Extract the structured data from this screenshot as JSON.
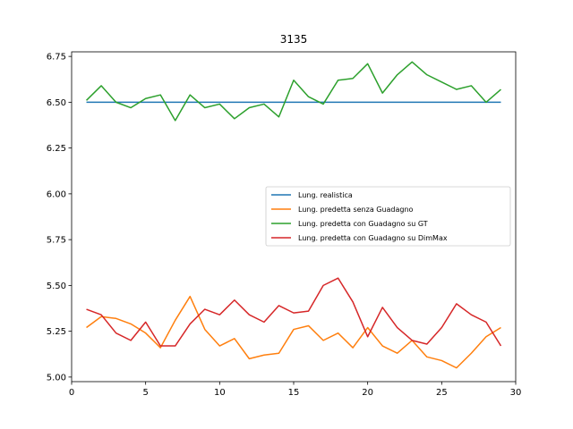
{
  "chart_data": {
    "type": "line",
    "title": "3135",
    "xlabel": "",
    "ylabel": "",
    "xlim": [
      0,
      30
    ],
    "ylim": [
      4.975,
      6.775
    ],
    "x_ticks": [
      0,
      5,
      10,
      15,
      20,
      25,
      30
    ],
    "y_ticks": [
      5.0,
      5.25,
      5.5,
      5.75,
      6.0,
      6.25,
      6.5,
      6.75
    ],
    "grid": false,
    "legend_position": "center-right",
    "x": [
      1,
      2,
      3,
      4,
      5,
      6,
      7,
      8,
      9,
      10,
      11,
      12,
      13,
      14,
      15,
      16,
      17,
      18,
      19,
      20,
      21,
      22,
      23,
      24,
      25,
      26,
      27,
      28,
      29
    ],
    "series": [
      {
        "name": "Lung. realistica",
        "color": "#1f77b4",
        "values": [
          6.5,
          6.5,
          6.5,
          6.5,
          6.5,
          6.5,
          6.5,
          6.5,
          6.5,
          6.5,
          6.5,
          6.5,
          6.5,
          6.5,
          6.5,
          6.5,
          6.5,
          6.5,
          6.5,
          6.5,
          6.5,
          6.5,
          6.5,
          6.5,
          6.5,
          6.5,
          6.5,
          6.5,
          6.5
        ]
      },
      {
        "name": "Lung. predetta senza Guadagno",
        "color": "#ff7f0e",
        "values": [
          5.27,
          5.33,
          5.32,
          5.29,
          5.24,
          5.16,
          5.31,
          5.44,
          5.26,
          5.17,
          5.21,
          5.1,
          5.12,
          5.13,
          5.26,
          5.28,
          5.2,
          5.24,
          5.16,
          5.27,
          5.17,
          5.13,
          5.2,
          5.11,
          5.09,
          5.05,
          5.13,
          5.22,
          5.27
        ]
      },
      {
        "name": "Lung. predetta con Guadagno su GT",
        "color": "#2ca02c",
        "values": [
          6.51,
          6.59,
          6.5,
          6.47,
          6.52,
          6.54,
          6.4,
          6.54,
          6.47,
          6.49,
          6.41,
          6.47,
          6.49,
          6.42,
          6.62,
          6.53,
          6.49,
          6.62,
          6.63,
          6.71,
          6.55,
          6.65,
          6.72,
          6.65,
          6.61,
          6.57,
          6.59,
          6.5,
          6.57
        ]
      },
      {
        "name": "Lung. predetta con Guadagno su DimMax",
        "color": "#d62728",
        "values": [
          5.37,
          5.34,
          5.24,
          5.2,
          5.3,
          5.17,
          5.17,
          5.29,
          5.37,
          5.34,
          5.42,
          5.34,
          5.3,
          5.39,
          5.35,
          5.36,
          5.5,
          5.54,
          5.41,
          5.22,
          5.38,
          5.27,
          5.2,
          5.18,
          5.27,
          5.4,
          5.34,
          5.3,
          5.17
        ]
      }
    ]
  }
}
